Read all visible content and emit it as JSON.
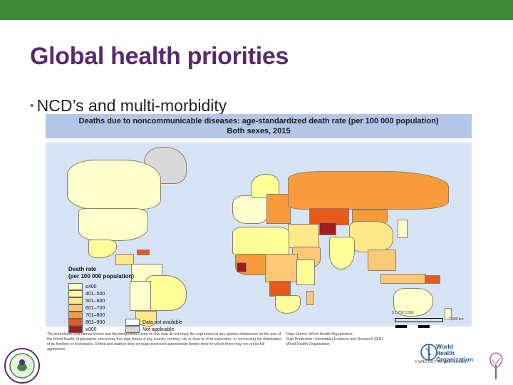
{
  "slide": {
    "title": "Global health priorities",
    "bullet": "NCD’s and multi-morbidity"
  },
  "map": {
    "title_line1": "Deaths due to noncommunicable diseases: age-standardized death rate (per 100 000 population)",
    "title_line2": "Both sexes, 2015",
    "legend": {
      "title_line1": "Death rate",
      "title_line2": "(per 100 000 population)",
      "items": [
        {
          "label": "≤400",
          "color": "#ffffcc"
        },
        {
          "label": "401–500",
          "color": "#ffff99"
        },
        {
          "label": "501–600",
          "color": "#fde88a"
        },
        {
          "label": "601–700",
          "color": "#fdc876"
        },
        {
          "label": "701–800",
          "color": "#f99b3a"
        },
        {
          "label": "801–900",
          "color": "#e8591c"
        },
        {
          "label": "≥900",
          "color": "#a11c1c"
        },
        {
          "label": "Data not available",
          "color": "#ffffff"
        },
        {
          "label": "Not applicable",
          "color": "#d9d9d9"
        }
      ]
    },
    "disclaimer": "The boundaries and names shown and the designations used on this map do not imply the expression of any opinion whatsoever on the part of the World Health Organization concerning the legal status of any country, territory, city or area or of its authorities, or concerning the delimitation of its frontiers or boundaries. Dotted and dashed lines on maps represent approximate border lines for which there may not yet be full agreement.",
    "data_source": "Data Source: World Health Organization\nMap Production: Information Evidence and Research (IER)\nWorld Health Organization",
    "scale_labels": "0   1,750   3,500",
    "scale_unit": "7,000 km",
    "who_name_line1": "World Health",
    "who_name_line2": "Organization",
    "copyright": "© WHO 2017. All rights reserved."
  }
}
